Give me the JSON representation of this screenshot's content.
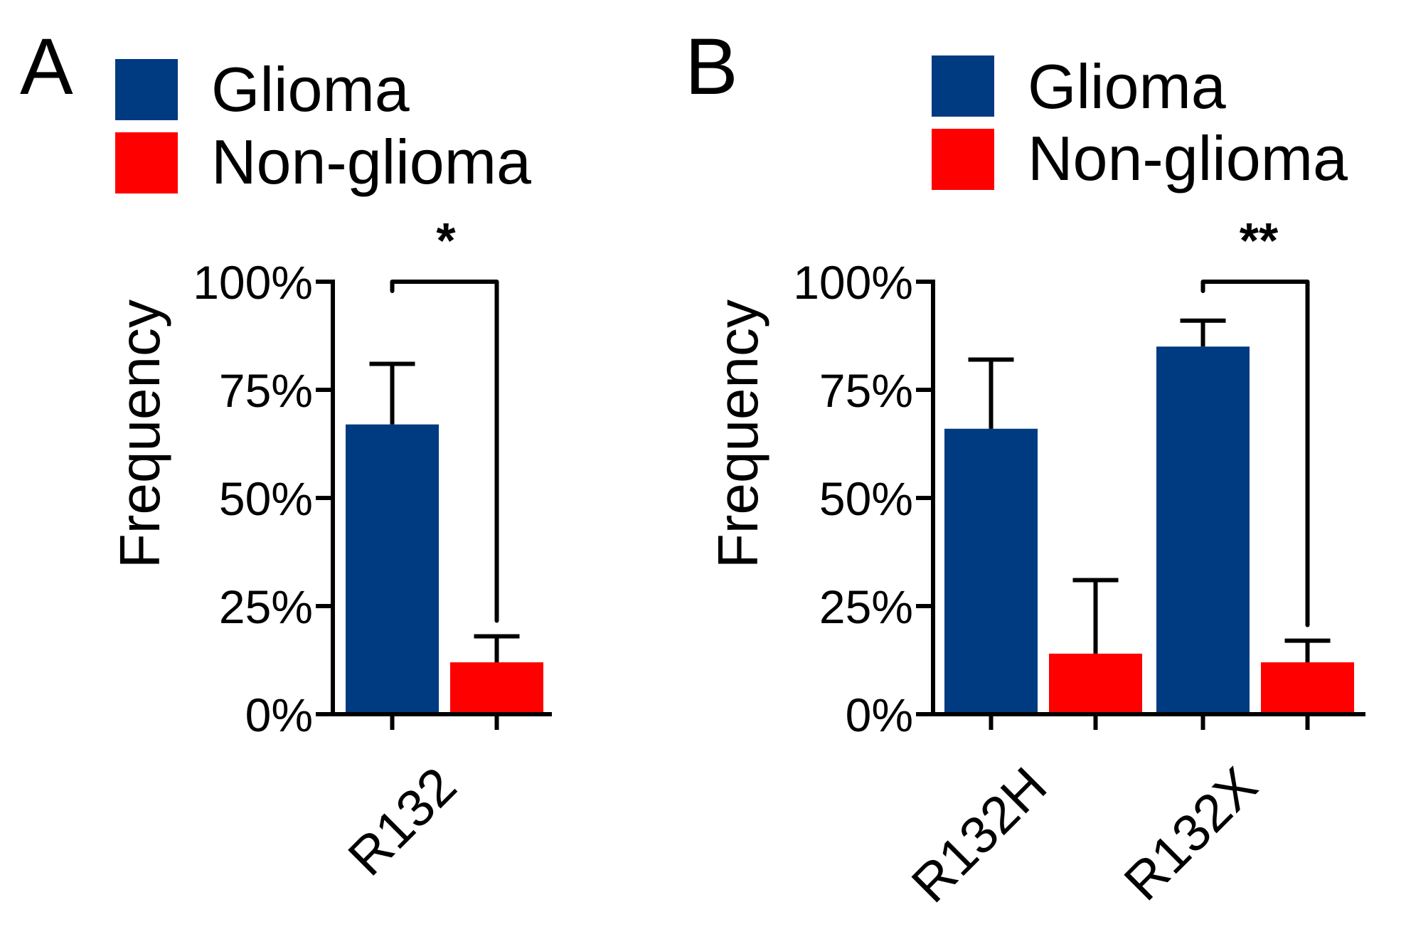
{
  "chart_data": [
    {
      "panel": "A",
      "type": "bar",
      "categories": [
        "R132"
      ],
      "series": [
        {
          "name": "Glioma",
          "color": "#003a80",
          "values": [
            67
          ],
          "errors": [
            14
          ]
        },
        {
          "name": "Non-glioma",
          "color": "#ff0000",
          "values": [
            12
          ],
          "errors": [
            6
          ]
        }
      ],
      "ylabel": "Frequency",
      "xlabel": "",
      "ylim": [
        0,
        100
      ],
      "yticks": [
        "0%",
        "25%",
        "50%",
        "75%",
        "100%"
      ],
      "yticks_values": [
        0,
        25,
        50,
        75,
        100
      ],
      "legend": "top",
      "significance": [
        {
          "category": "R132",
          "label": "*"
        }
      ]
    },
    {
      "panel": "B",
      "type": "bar",
      "categories": [
        "R132H",
        "R132X"
      ],
      "series": [
        {
          "name": "Glioma",
          "color": "#003a80",
          "values": [
            66,
            85
          ],
          "errors": [
            16,
            6
          ]
        },
        {
          "name": "Non-glioma",
          "color": "#ff0000",
          "values": [
            14,
            12
          ],
          "errors": [
            17,
            5
          ]
        }
      ],
      "ylabel": "Frequency",
      "xlabel": "",
      "ylim": [
        0,
        100
      ],
      "yticks": [
        "0%",
        "25%",
        "50%",
        "75%",
        "100%"
      ],
      "yticks_values": [
        0,
        25,
        50,
        75,
        100
      ],
      "legend": "top",
      "significance": [
        {
          "category": "R132X",
          "label": "**"
        }
      ]
    }
  ]
}
